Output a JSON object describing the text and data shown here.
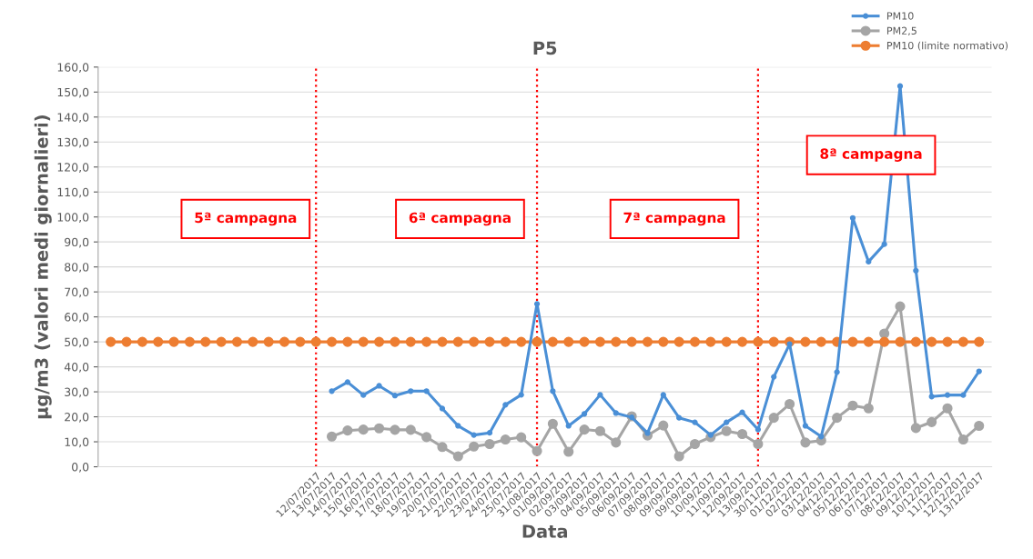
{
  "chart_data": {
    "type": "line",
    "title": "P5",
    "xlabel": "Data",
    "ylabel": "µg/m3 (valori medi giornalieri)",
    "categories": [
      null,
      null,
      null,
      null,
      null,
      null,
      null,
      null,
      null,
      null,
      null,
      null,
      null,
      "12/07/2017",
      "13/07/2017",
      "14/07/2017",
      "15/07/2017",
      "16/07/2017",
      "17/07/2017",
      "18/07/2017",
      "19/07/2017",
      "20/07/2017",
      "21/07/2017",
      "22/07/2017",
      "23/07/2017",
      "24/07/2017",
      "25/07/2017",
      "31/08/2017",
      "01/09/2017",
      "02/09/2017",
      "03/09/2017",
      "04/09/2017",
      "05/09/2017",
      "06/09/2017",
      "07/09/2017",
      "08/09/2017",
      "09/09/2017",
      "09/09/2017",
      "10/09/2017",
      "11/09/2017",
      "12/09/2017",
      "13/09/2017",
      "30/11/2017",
      "01/12/2017",
      "02/12/2017",
      "03/12/2017",
      "04/12/2017",
      "05/12/2017",
      "06/12/2017",
      "07/12/2017",
      "08/12/2017",
      "09/12/2017",
      "10/12/2017",
      "11/12/2017",
      "12/12/2017",
      "13/12/2017"
    ],
    "series": [
      {
        "name": "PM10",
        "color": "#4a8fd6",
        "values": [
          null,
          null,
          null,
          null,
          null,
          null,
          null,
          null,
          null,
          null,
          null,
          null,
          null,
          null,
          30.3,
          33.9,
          28.7,
          32.4,
          28.5,
          30.3,
          30.3,
          23.3,
          16.4,
          12.7,
          13.6,
          24.8,
          28.8,
          65.2,
          30.3,
          16.4,
          21.2,
          28.8,
          21.5,
          19.8,
          13.5,
          28.8,
          19.6,
          17.8,
          12.7,
          17.8,
          21.8,
          14.9,
          36.0,
          49.1,
          16.4,
          12.1,
          37.9,
          99.6,
          82.1,
          89.1,
          152.4,
          78.5,
          28.1,
          28.7,
          28.7,
          38.2
        ]
      },
      {
        "name": "PM2,5",
        "color": "#a5a5a5",
        "values": [
          null,
          null,
          null,
          null,
          null,
          null,
          null,
          null,
          null,
          null,
          null,
          null,
          null,
          null,
          12.1,
          14.5,
          14.9,
          15.4,
          14.8,
          14.8,
          11.9,
          7.9,
          4.2,
          8.1,
          9.1,
          10.9,
          11.8,
          6.3,
          17.2,
          6.0,
          14.9,
          14.3,
          9.7,
          20.2,
          12.5,
          16.5,
          4.2,
          9.1,
          11.9,
          14.3,
          13.1,
          9.1,
          19.6,
          25.1,
          9.7,
          10.5,
          19.6,
          24.5,
          23.4,
          53.3,
          64.2,
          15.5,
          17.9,
          23.4,
          10.9,
          16.4
        ]
      },
      {
        "name": "PM10 (limite normativo)",
        "color": "#ed7d31",
        "values": [
          50,
          50,
          50,
          50,
          50,
          50,
          50,
          50,
          50,
          50,
          50,
          50,
          50,
          50,
          50,
          50,
          50,
          50,
          50,
          50,
          50,
          50,
          50,
          50,
          50,
          50,
          50,
          50,
          50,
          50,
          50,
          50,
          50,
          50,
          50,
          50,
          50,
          50,
          50,
          50,
          50,
          50,
          50,
          50,
          50,
          50,
          50,
          50,
          50,
          50,
          50,
          50,
          50,
          50,
          50,
          50
        ]
      }
    ],
    "ylim": [
      0,
      160
    ],
    "yticks": [
      {
        "value": 0,
        "label": "0,0"
      },
      {
        "value": 10,
        "label": "10,0"
      },
      {
        "value": 20,
        "label": "20,0"
      },
      {
        "value": 30,
        "label": "30,0"
      },
      {
        "value": 40,
        "label": "40,0"
      },
      {
        "value": 50,
        "label": "50,0"
      },
      {
        "value": 60,
        "label": "60,0"
      },
      {
        "value": 70,
        "label": "70,0"
      },
      {
        "value": 80,
        "label": "80,0"
      },
      {
        "value": 90,
        "label": "90,0"
      },
      {
        "value": 100,
        "label": "100,0"
      },
      {
        "value": 110,
        "label": "110,0"
      },
      {
        "value": 120,
        "label": "120,0"
      },
      {
        "value": 130,
        "label": "130,0"
      },
      {
        "value": 140,
        "label": "140,0"
      },
      {
        "value": 150,
        "label": "150,0"
      },
      {
        "value": 160,
        "label": "160,0"
      }
    ],
    "ref_lines": [
      {
        "axis": "x",
        "value": "12/07/2017",
        "color": "#ff0000",
        "line_style": "dotted"
      },
      {
        "axis": "x",
        "value": "31/08/2017",
        "color": "#ff0000",
        "line_style": "dotted"
      },
      {
        "axis": "x",
        "value": "13/09/2017",
        "color": "#ff0000",
        "line_style": "dotted"
      }
    ],
    "annotations": [
      "5ª campagna",
      "6ª campagna",
      "7ª campagna",
      "8ª campagna"
    ],
    "grid": "y",
    "legend": "top right",
    "marker": "circle",
    "line_style": "solid"
  }
}
